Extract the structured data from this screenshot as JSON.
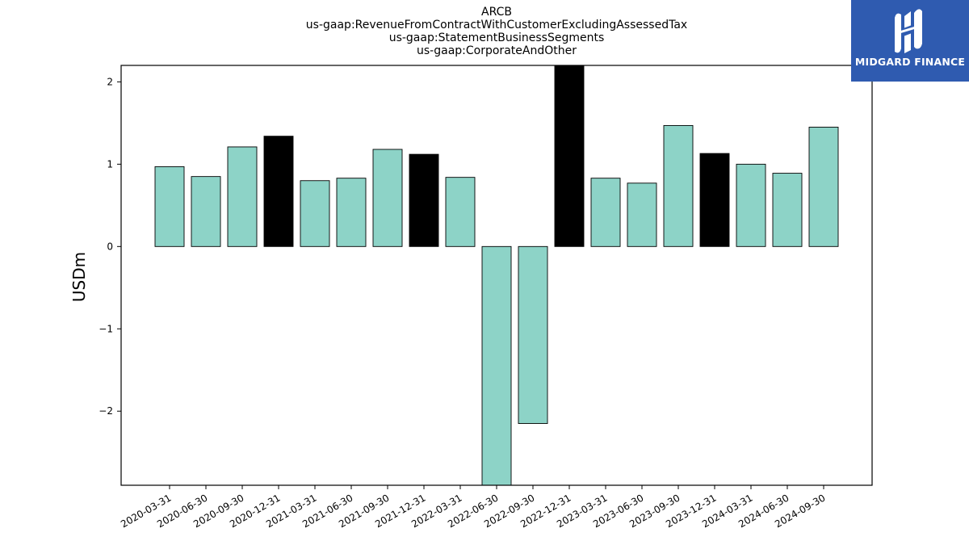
{
  "brand": {
    "name": "MIDGARD FINANCE",
    "bg_color": "#2f5bb0",
    "icon": "midgard-logo-icon"
  },
  "chart_data": {
    "type": "bar",
    "title_lines": [
      "ARCB",
      "us-gaap:RevenueFromContractWithCustomerExcludingAssessedTax",
      "us-gaap:StatementBusinessSegments",
      "us-gaap:CorporateAndOther"
    ],
    "xlabel": "",
    "ylabel": "USDm",
    "ylim": [
      -2.9,
      2.2
    ],
    "yticks": [
      -2,
      -1,
      0,
      1,
      2
    ],
    "ytick_labels": [
      "−2",
      "−1",
      "0",
      "1",
      "2"
    ],
    "categories": [
      "2020-03-31",
      "2020-06-30",
      "2020-09-30",
      "2020-12-31",
      "2021-03-31",
      "2021-06-30",
      "2021-09-30",
      "2021-12-31",
      "2022-03-31",
      "2022-06-30",
      "2022-09-30",
      "2022-12-31",
      "2023-03-31",
      "2023-06-30",
      "2023-09-30",
      "2023-12-31",
      "2024-03-31",
      "2024-06-30",
      "2024-09-30"
    ],
    "values": [
      0.97,
      0.85,
      1.21,
      1.34,
      0.8,
      0.83,
      1.18,
      1.12,
      0.84,
      -2.9,
      -2.15,
      2.2,
      0.83,
      0.77,
      1.47,
      1.13,
      1.0,
      0.89,
      1.45
    ],
    "highlighted": [
      false,
      false,
      false,
      true,
      false,
      false,
      false,
      true,
      false,
      false,
      false,
      true,
      false,
      false,
      false,
      true,
      false,
      false,
      false
    ],
    "colors": {
      "bar": "#8dd3c7",
      "highlight": "#000000",
      "edge": "#000000"
    },
    "grid": false
  }
}
